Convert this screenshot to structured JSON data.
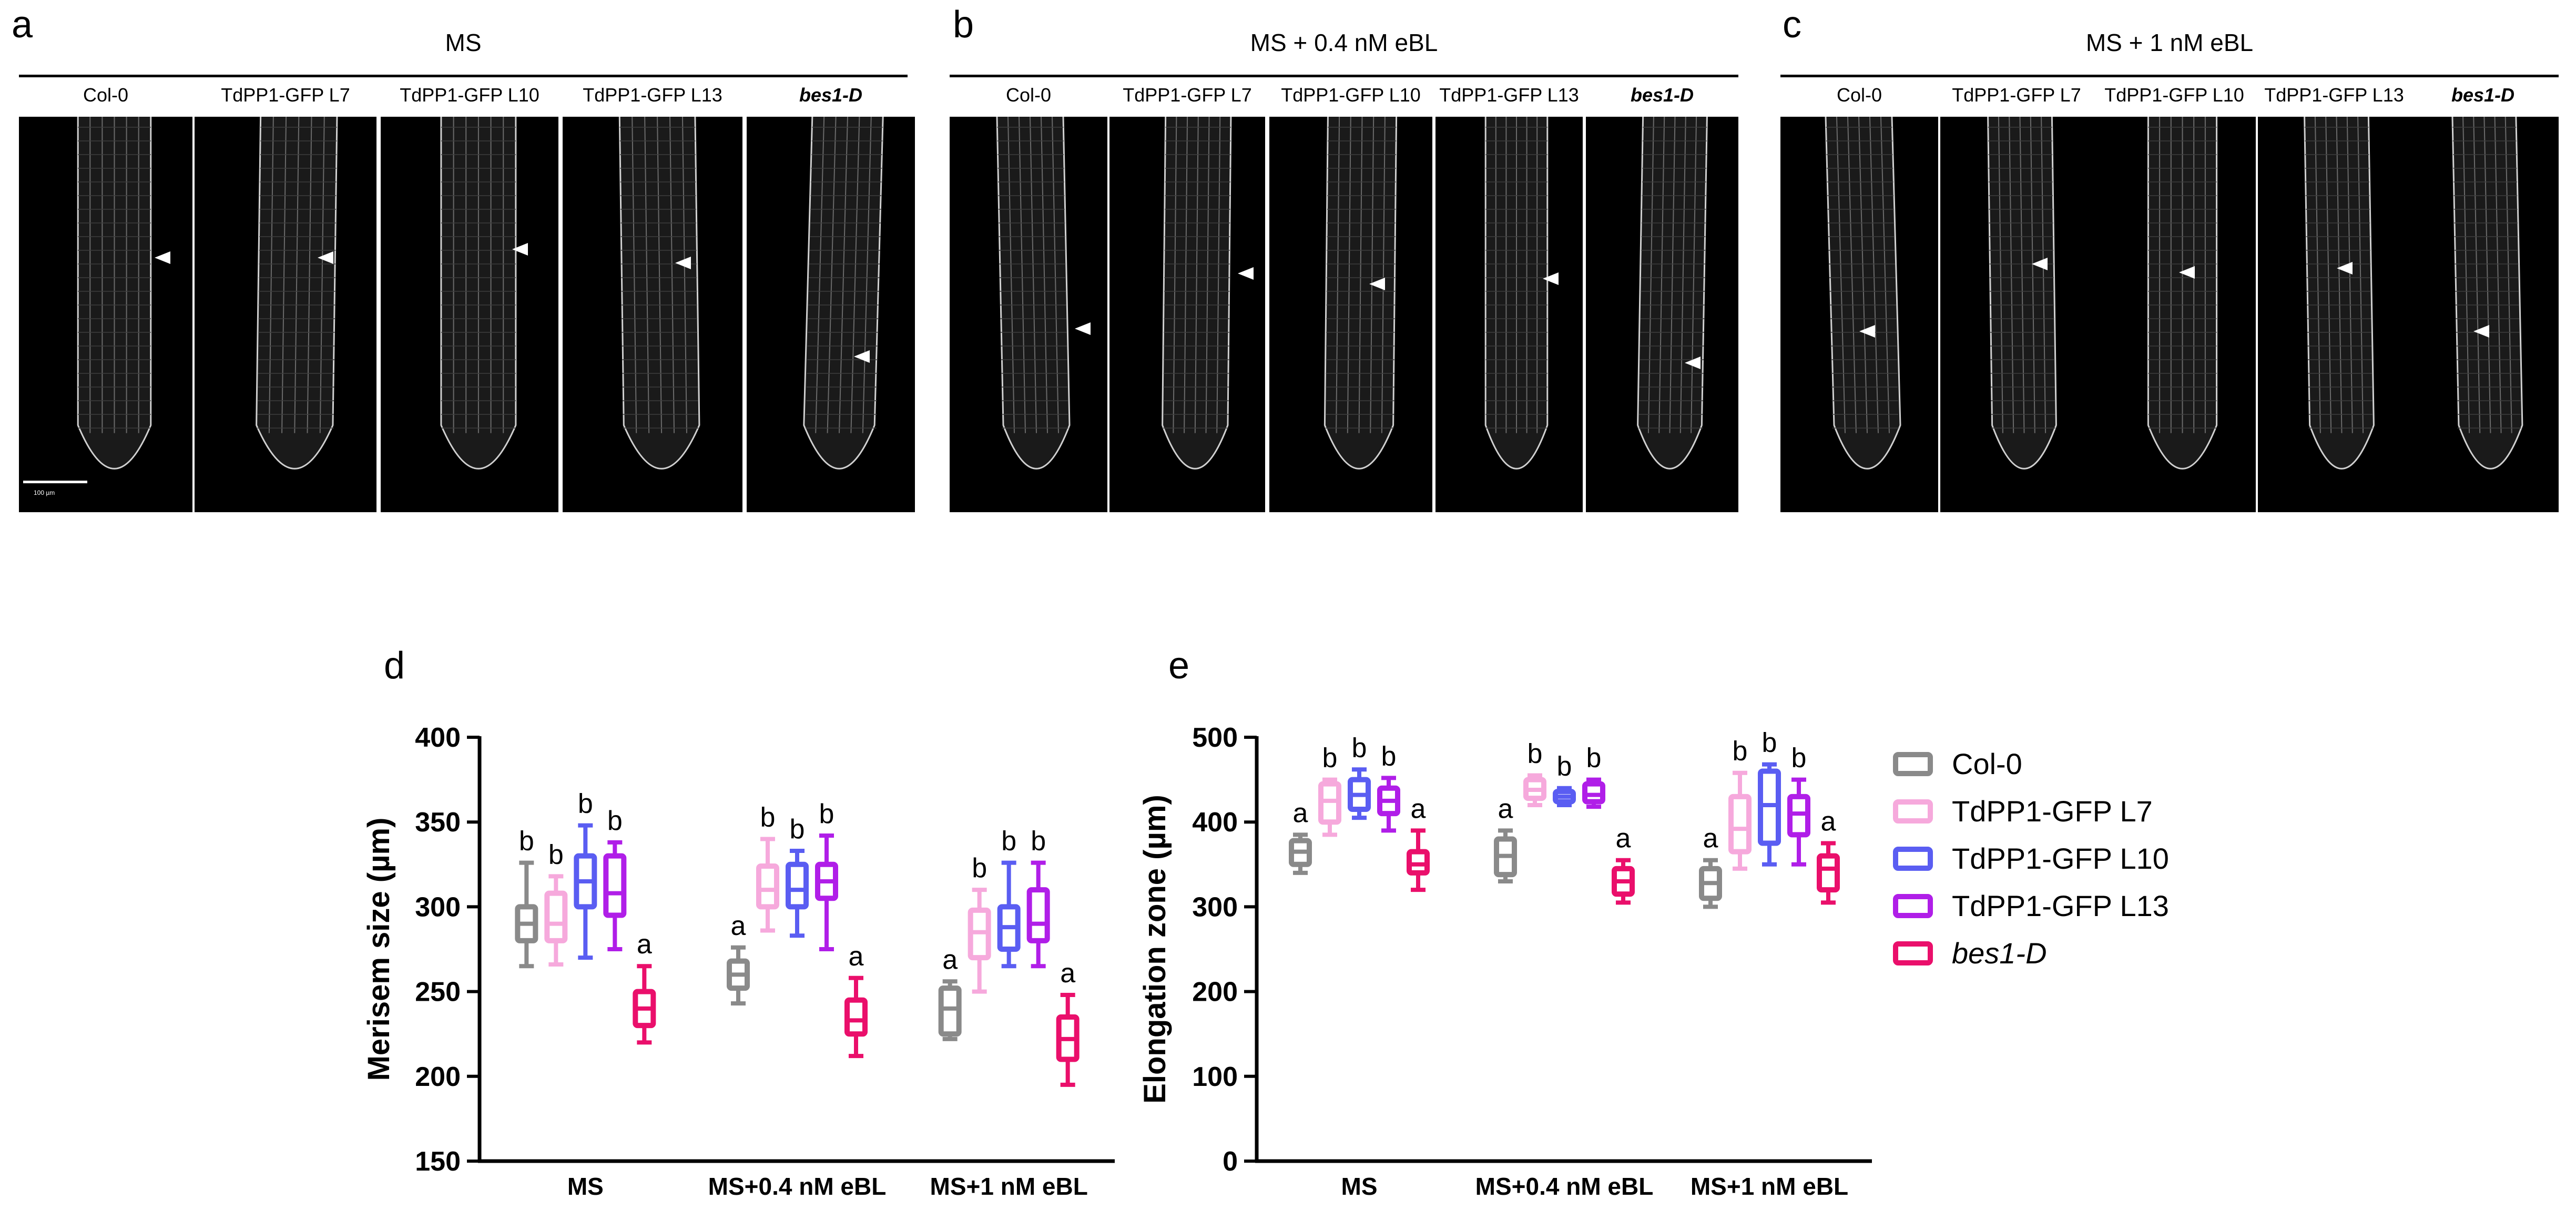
{
  "panels": {
    "a": {
      "letter": "a",
      "title": "MS",
      "labels": [
        "Col-0",
        "TdPP1-GFP L7",
        "TdPP1-GFP L10",
        "TdPP1-GFP L13",
        "bes1-D"
      ],
      "scalebar": "100 µm"
    },
    "b": {
      "letter": "b",
      "title": "MS + 0.4 nM eBL",
      "labels": [
        "Col-0",
        "TdPP1-GFP L7",
        "TdPP1-GFP L10",
        "TdPP1-GFP L13",
        "bes1-D"
      ]
    },
    "c": {
      "letter": "c",
      "title": "MS + 1 nM eBL",
      "labels": [
        "Col-0",
        "TdPP1-GFP L7",
        "TdPP1-GFP L10",
        "TdPP1-GFP L13",
        "bes1-D"
      ]
    }
  },
  "legend": {
    "items": [
      {
        "name": "Col-0",
        "color": "#8a8a8a"
      },
      {
        "name": "TdPP1-GFP L7",
        "color": "#f6a9dc"
      },
      {
        "name": "TdPP1-GFP L10",
        "color": "#5a5df2"
      },
      {
        "name": "TdPP1-GFP L13",
        "color": "#b01ee8"
      },
      {
        "name": "bes1-D",
        "color": "#ea0f6b"
      }
    ]
  },
  "chart_data": [
    {
      "panel": "d",
      "type": "box",
      "ylabel": "Merisem size (µm)",
      "xlabel": "",
      "ylim": [
        150,
        400
      ],
      "yticks": [
        150,
        200,
        250,
        300,
        350,
        400
      ],
      "categories": [
        "MS",
        "MS+0.4 nM eBL",
        "MS+1 nM eBL"
      ],
      "series": [
        {
          "name": "Col-0",
          "boxes": [
            [
              265,
              280,
              290,
              300,
              326
            ],
            [
              243,
              252,
              260,
              268,
              276
            ],
            [
              222,
              225,
              240,
              252,
              256
            ]
          ],
          "letters": [
            "b",
            "a",
            "a"
          ]
        },
        {
          "name": "TdPP1-GFP L7",
          "boxes": [
            [
              266,
              280,
              290,
              308,
              318
            ],
            [
              286,
              300,
              310,
              324,
              340
            ],
            [
              250,
              270,
              285,
              298,
              310
            ]
          ],
          "letters": [
            "b",
            "b",
            "b"
          ]
        },
        {
          "name": "TdPP1-GFP L10",
          "boxes": [
            [
              270,
              300,
              315,
              330,
              348
            ],
            [
              283,
              300,
              310,
              325,
              333
            ],
            [
              265,
              275,
              288,
              300,
              326
            ]
          ],
          "letters": [
            "b",
            "b",
            "b"
          ]
        },
        {
          "name": "TdPP1-GFP L13",
          "boxes": [
            [
              275,
              295,
              308,
              330,
              338
            ],
            [
              275,
              305,
              315,
              325,
              342
            ],
            [
              265,
              280,
              290,
              310,
              326
            ]
          ],
          "letters": [
            "b",
            "b",
            "b"
          ]
        },
        {
          "name": "bes1-D",
          "boxes": [
            [
              220,
              230,
              240,
              250,
              265
            ],
            [
              212,
              225,
              233,
              245,
              258
            ],
            [
              195,
              210,
              222,
              235,
              248
            ]
          ],
          "letters": [
            "a",
            "a",
            "a"
          ]
        }
      ]
    },
    {
      "panel": "e",
      "type": "box",
      "ylabel": "Elongation zone (µm)",
      "xlabel": "",
      "ylim": [
        0,
        500
      ],
      "yticks": [
        0,
        100,
        200,
        300,
        400,
        500
      ],
      "categories": [
        "MS",
        "MS+0.4 nM eBL",
        "MS+1 nM eBL"
      ],
      "series": [
        {
          "name": "Col-0",
          "boxes": [
            [
              340,
              350,
              365,
              378,
              385
            ],
            [
              330,
              338,
              360,
              380,
              390
            ],
            [
              300,
              310,
              328,
              345,
              355
            ]
          ],
          "letters": [
            "a",
            "a",
            "a"
          ]
        },
        {
          "name": "TdPP1-GFP L7",
          "boxes": [
            [
              385,
              400,
              425,
              445,
              450
            ],
            [
              420,
              428,
              438,
              450,
              455
            ],
            [
              345,
              365,
              392,
              430,
              458
            ]
          ],
          "letters": [
            "b",
            "b",
            "b"
          ]
        },
        {
          "name": "TdPP1-GFP L10",
          "boxes": [
            [
              405,
              415,
              432,
              450,
              462
            ],
            [
              420,
              424,
              430,
              436,
              440
            ],
            [
              350,
              375,
              420,
              460,
              468
            ]
          ],
          "letters": [
            "b",
            "b",
            "b"
          ]
        },
        {
          "name": "TdPP1-GFP L13",
          "boxes": [
            [
              390,
              410,
              425,
              440,
              452
            ],
            [
              418,
              424,
              432,
              445,
              450
            ],
            [
              350,
              385,
              410,
              430,
              450
            ]
          ],
          "letters": [
            "b",
            "b",
            "b"
          ]
        },
        {
          "name": "bes1-D",
          "boxes": [
            [
              320,
              340,
              350,
              365,
              390
            ],
            [
              305,
              315,
              330,
              345,
              355
            ],
            [
              305,
              320,
              345,
              360,
              375
            ]
          ],
          "letters": [
            "a",
            "a",
            "a"
          ]
        }
      ]
    }
  ],
  "chart_panel_letters": {
    "d": "d",
    "e": "e"
  }
}
